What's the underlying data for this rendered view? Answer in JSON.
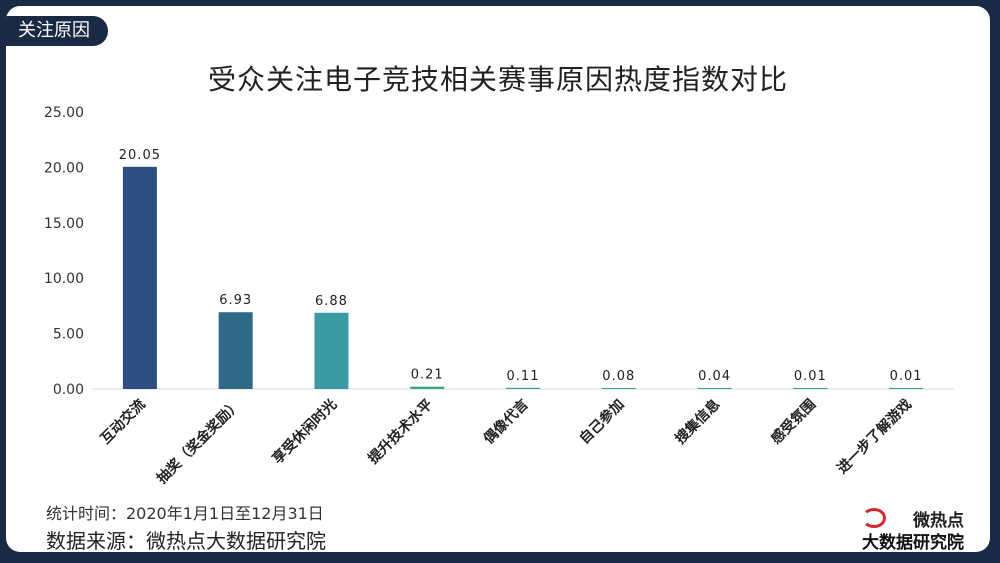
{
  "header": {
    "tag": "关注原因"
  },
  "footer": {
    "period": "统计时间：2020年1月1日至12月31日",
    "source": "数据来源：微热点大数据研究院"
  },
  "logo": {
    "line1": "微热点",
    "line2": "大数据研究院"
  },
  "colors": {
    "background": "#1b2a44",
    "bar_dark": "#2c4e80",
    "bar_mid": "#2e6a87",
    "bar_teal": "#3a9aa6",
    "bar_green": "#3aa37a"
  },
  "chart_data": {
    "type": "bar",
    "title": "受众关注电子竞技相关赛事原因热度指数对比",
    "categories": [
      "互动交流",
      "抽奖（奖金奖励）",
      "享受休闲时光",
      "提升技术水平",
      "偶像代言",
      "自己参加",
      "搜集信息",
      "感受氛围",
      "进一步了解游戏"
    ],
    "values": [
      20.05,
      6.93,
      6.88,
      0.21,
      0.11,
      0.08,
      0.04,
      0.01,
      0.01
    ],
    "value_labels": [
      "20.05",
      "6.93",
      "6.88",
      "0.21",
      "0.11",
      "0.08",
      "0.04",
      "0.01",
      "0.01"
    ],
    "bar_colors": [
      "#2c4e80",
      "#2e6a87",
      "#3a9aa6",
      "#3aa37a",
      "#3aa37a",
      "#3aa37a",
      "#3aa37a",
      "#3aa37a",
      "#3aa37a"
    ],
    "yticks": [
      "0.00",
      "5.00",
      "10.00",
      "15.00",
      "20.00",
      "25.00"
    ],
    "ylim": [
      0,
      25
    ],
    "grid": false,
    "legend": "none"
  }
}
